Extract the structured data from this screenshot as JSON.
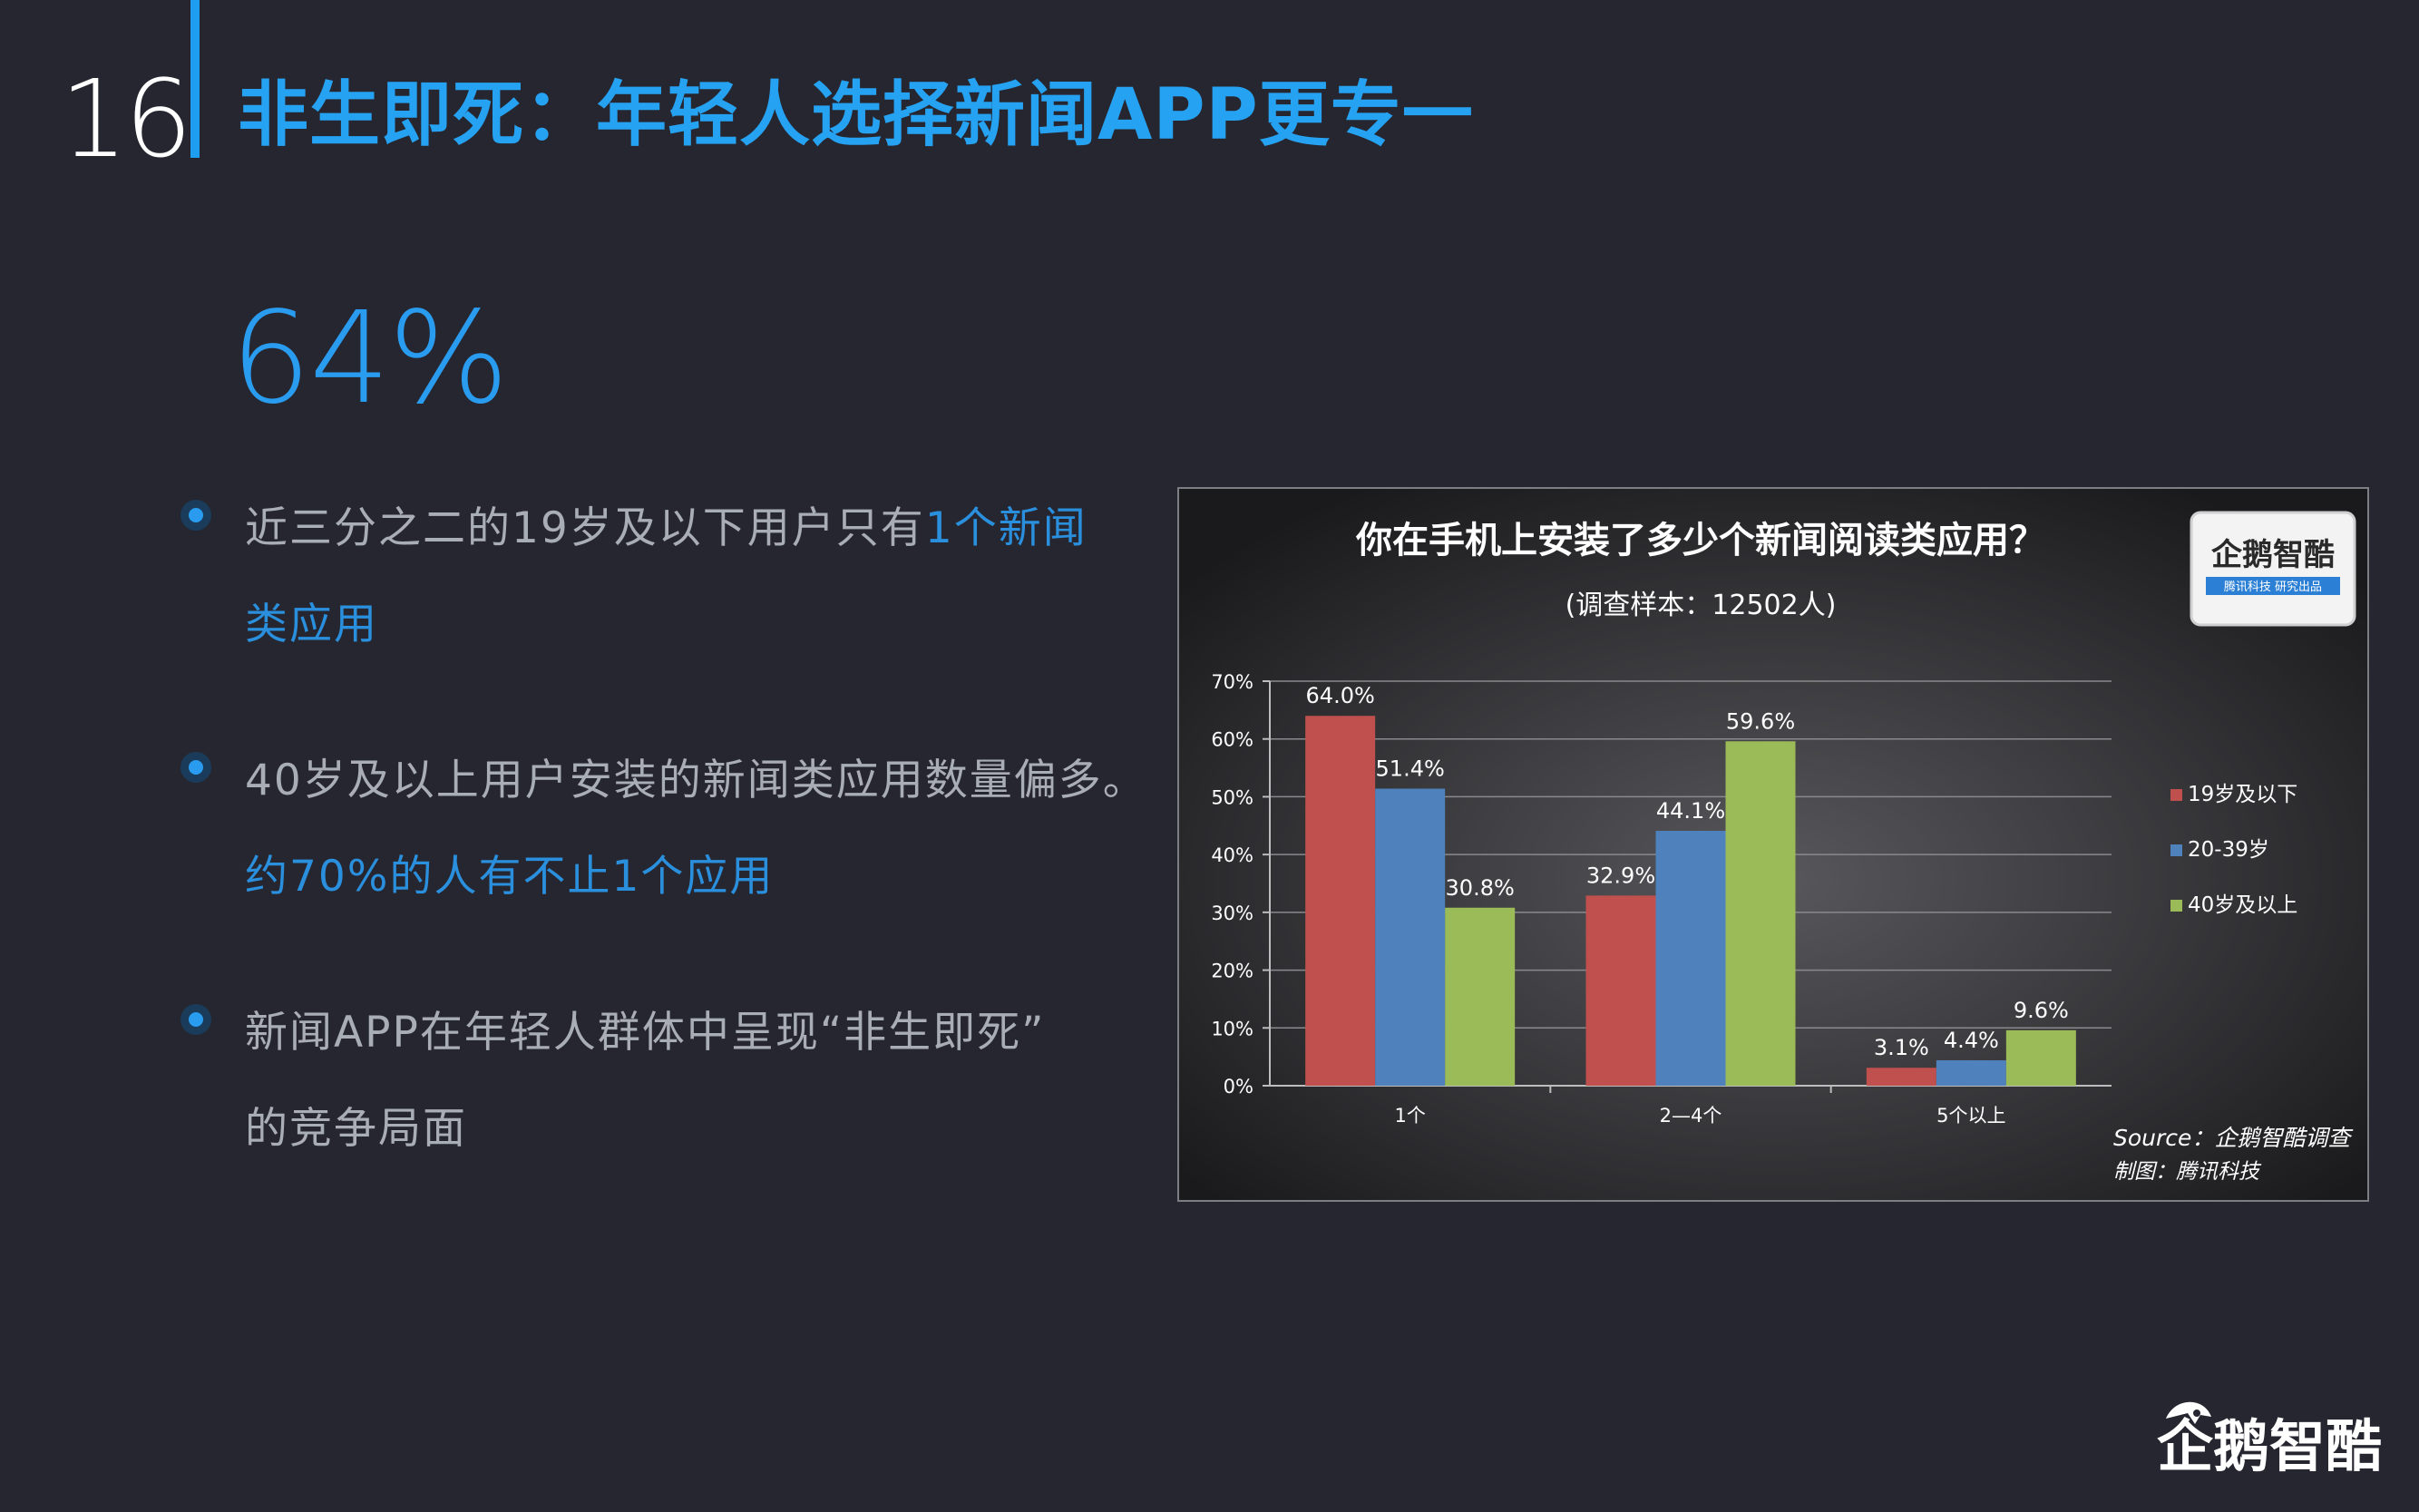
{
  "slide": {
    "page_number": "16",
    "title": "非生即死：年轻人选择新闻APP更专一",
    "big_stat": "64%",
    "bullets": [
      {
        "line1": "近三分之二的19岁及以下用户只有",
        "line1_hl": "1个新闻",
        "line2": "",
        "line2_hl": "类应用"
      },
      {
        "line1": "40岁及以上用户安装的新闻类应用数量偏多。",
        "line1_hl": "",
        "line2": "",
        "line2_hl": "约70%的人有不止1个应用"
      },
      {
        "line1": "新闻APP在年轻人群体中呈现“非生即死”",
        "line1_hl": "",
        "line2": "的竞争局面",
        "line2_hl": ""
      }
    ]
  },
  "logo": {
    "name": "企鹅智酷",
    "tagline": "腾讯科技 研究出品"
  },
  "chart_data": {
    "type": "bar",
    "title": "你在手机上安装了多少个新闻阅读类应用？",
    "subtitle": "(调查样本：12502人)",
    "categories": [
      "1个",
      "2—4个",
      "5个以上"
    ],
    "series": [
      {
        "name": "19岁及以下",
        "values": [
          64.0,
          32.9,
          3.1
        ],
        "color": "#c0504d"
      },
      {
        "name": "20-39岁",
        "values": [
          51.4,
          44.1,
          4.4
        ],
        "color": "#4f81bd"
      },
      {
        "name": "40岁及以上",
        "values": [
          30.8,
          59.6,
          9.6
        ],
        "color": "#9bbb59"
      }
    ],
    "value_labels": [
      [
        "64.0%",
        "32.9%",
        "3.1%"
      ],
      [
        "51.4%",
        "44.1%",
        "4.4%"
      ],
      [
        "30.8%",
        "59.6%",
        "9.6%"
      ]
    ],
    "ylim": [
      0,
      70
    ],
    "yticks": [
      "0%",
      "10%",
      "20%",
      "30%",
      "40%",
      "50%",
      "60%",
      "70%"
    ],
    "grid": true,
    "legend_position": "right",
    "source": "Source：企鹅智酷调查",
    "credit": "制图：腾讯科技"
  },
  "colors": {
    "background": "#262630",
    "accent": "#1e9ef0",
    "bullet_text": "#a9adb6",
    "highlight": "#2a8fdc"
  }
}
